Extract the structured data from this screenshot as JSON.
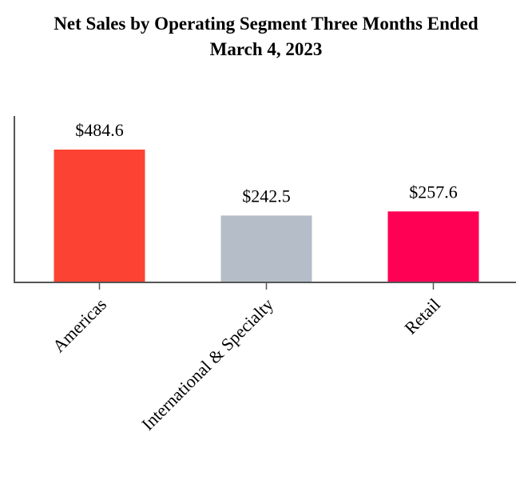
{
  "chart_data": {
    "type": "bar",
    "title": "Net Sales by Operating Segment Three Months Ended March 4, 2023",
    "categories": [
      "Americas",
      "International & Specialty",
      "Retail"
    ],
    "values": [
      484.6,
      242.5,
      257.6
    ],
    "value_labels": [
      "$484.6",
      "$242.5",
      "$257.6"
    ],
    "colors": [
      "#fc4232",
      "#b5bec8",
      "#ff0055"
    ]
  }
}
